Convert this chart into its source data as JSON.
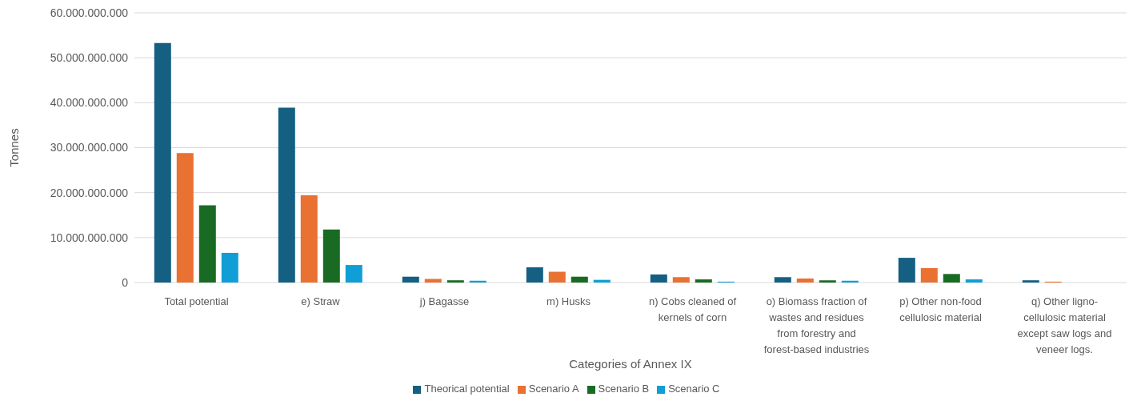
{
  "chart_data": {
    "type": "bar",
    "xlabel": "Categories of Annex IX",
    "ylabel": "Tonnes",
    "categories": [
      "Total potential",
      "e) Straw",
      "j) Bagasse",
      "m) Husks",
      "n) Cobs cleaned of kernels of corn",
      "o) Biomass fraction of wastes and residues from forestry and forest-based industries",
      "p) Other non-food cellulosic material",
      "q) Other ligno-cellulosic material except saw logs and veneer logs."
    ],
    "series": [
      {
        "name": "Theorical potential",
        "color": "#155f82",
        "values": [
          53300000000,
          38900000000,
          1300000000,
          3400000000,
          1800000000,
          1200000000,
          5500000000,
          500000000
        ]
      },
      {
        "name": "Scenario A",
        "color": "#e97132",
        "values": [
          28800000000,
          19400000000,
          800000000,
          2400000000,
          1200000000,
          900000000,
          3200000000,
          200000000
        ]
      },
      {
        "name": "Scenario B",
        "color": "#196b24",
        "values": [
          17200000000,
          11800000000,
          500000000,
          1300000000,
          700000000,
          500000000,
          1900000000,
          0
        ]
      },
      {
        "name": "Scenario C",
        "color": "#0f9ed5",
        "values": [
          6600000000,
          3900000000,
          400000000,
          600000000,
          200000000,
          400000000,
          700000000,
          0
        ]
      }
    ],
    "ylim": [
      0,
      60000000000
    ],
    "yticks": [
      {
        "value": 0,
        "label": "0"
      },
      {
        "value": 10000000000,
        "label": "10.000.000.000"
      },
      {
        "value": 20000000000,
        "label": "20.000.000.000"
      },
      {
        "value": 30000000000,
        "label": "30.000.000.000"
      },
      {
        "value": 40000000000,
        "label": "40.000.000.000"
      },
      {
        "value": 50000000000,
        "label": "50.000.000.000"
      },
      {
        "value": 60000000000,
        "label": "60.000.000.000"
      }
    ],
    "grid": "y",
    "legend": "bottom"
  }
}
